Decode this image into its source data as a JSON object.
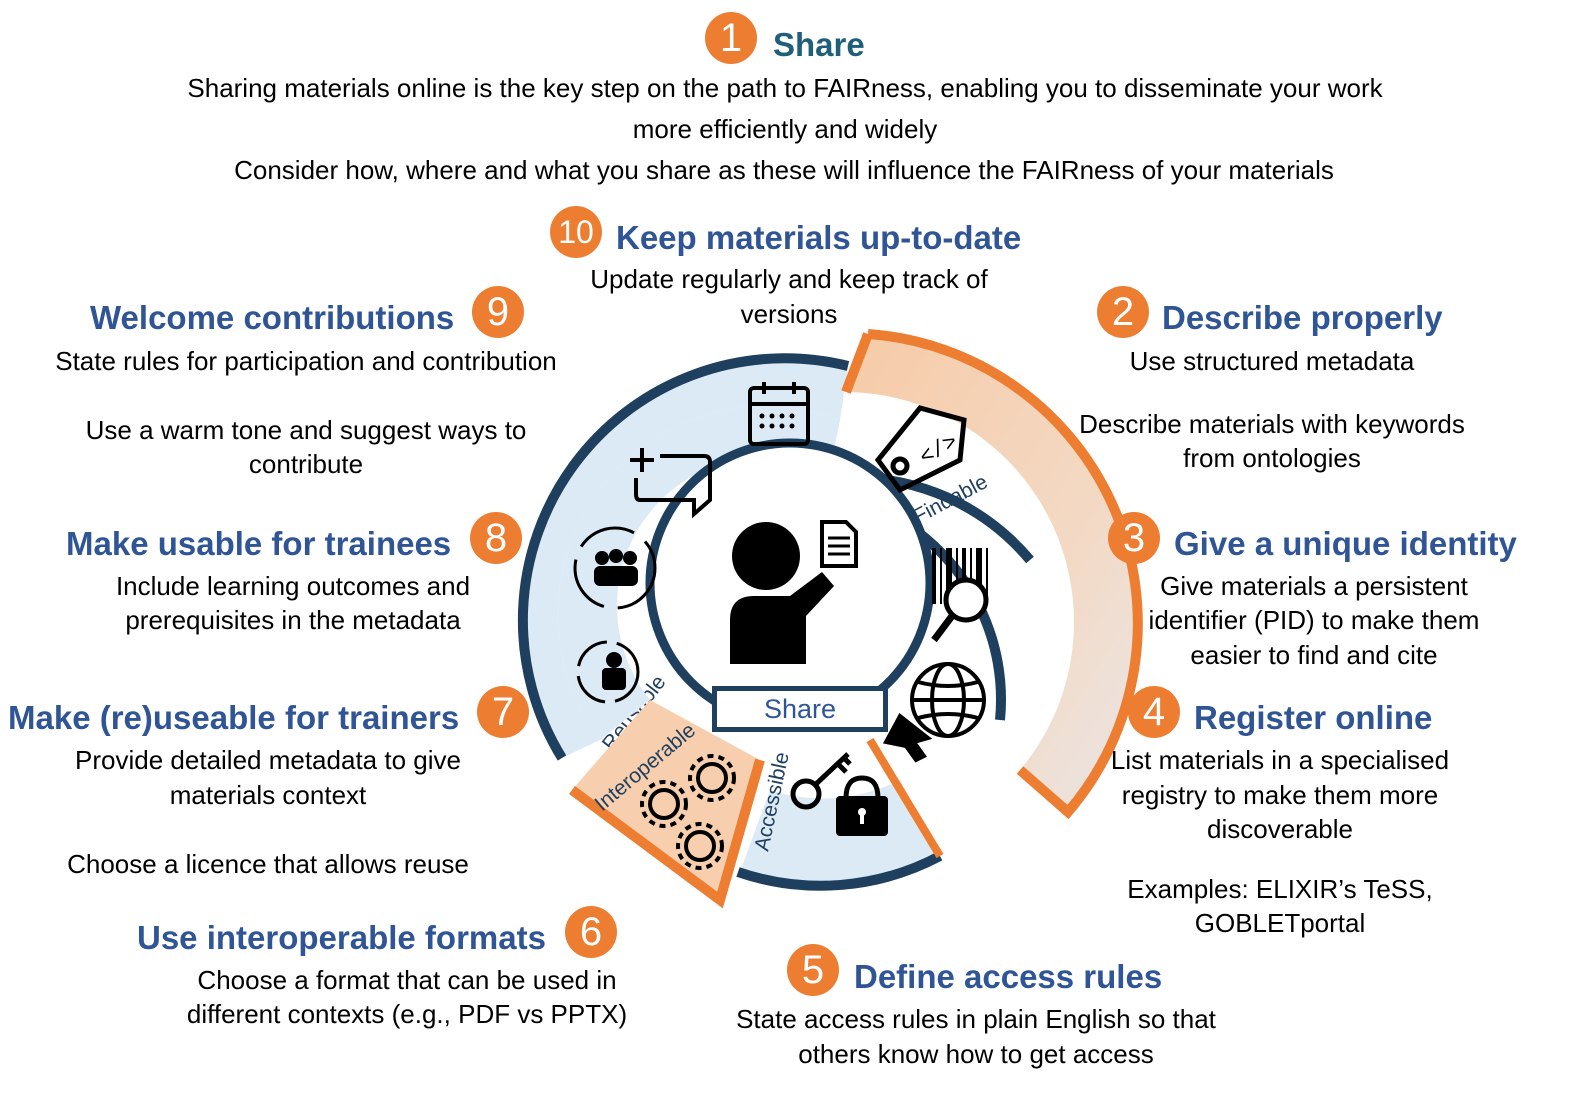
{
  "colors": {
    "heading": "#2f5597",
    "share_heading": "#1f5f7a",
    "badge": "#ed7d31",
    "ring_dark": "#1f3f5f",
    "reusable_fill": "#dceaf6",
    "findable_fill": "#f7cfae"
  },
  "steps": [
    {
      "num": "1",
      "title": "Share",
      "lines": [
        "Sharing materials online is the key step on the path to FAIRness, enabling you to disseminate your work",
        "more efficiently and widely",
        "Consider how, where and what you share as these will influence the FAIRness of your materials"
      ]
    },
    {
      "num": "2",
      "title": "Describe properly",
      "lines": [
        "Use structured metadata",
        "Describe materials with keywords",
        "from ontologies"
      ]
    },
    {
      "num": "3",
      "title": "Give a unique identity",
      "lines": [
        "Give materials a persistent",
        "identifier (PID) to make them",
        "easier to find and cite"
      ]
    },
    {
      "num": "4",
      "title": "Register online",
      "lines": [
        "List materials in a specialised",
        "registry to make them more",
        "discoverable",
        "Examples: ELIXIR’s TeSS,",
        "GOBLETportal"
      ]
    },
    {
      "num": "5",
      "title": "Define access rules",
      "lines": [
        "State access rules in plain English so that",
        "others know how to get access"
      ]
    },
    {
      "num": "6",
      "title": "Use interoperable formats",
      "lines": [
        "Choose a format that can be used in",
        "different contexts (e.g., PDF vs PPTX)"
      ]
    },
    {
      "num": "7",
      "title": "Make (re)useable for trainers",
      "lines": [
        "Provide detailed metadata to give",
        "materials context",
        "Choose a licence that allows reuse"
      ]
    },
    {
      "num": "8",
      "title": "Make usable for trainees",
      "lines": [
        "Include learning outcomes and",
        "prerequisites in the metadata"
      ]
    },
    {
      "num": "9",
      "title": "Welcome contributions",
      "lines": [
        "State rules for participation and contribution",
        "Use a warm tone and suggest ways to",
        "contribute"
      ]
    },
    {
      "num": "10",
      "title": "Keep materials up-to-date",
      "lines": [
        "Update regularly and keep track of",
        "versions"
      ]
    }
  ],
  "wheel": {
    "center_label": "Share",
    "segments": [
      "Findable",
      "Accessible",
      "Interoperable",
      "Reusable"
    ],
    "icons": [
      "calendar-icon",
      "add-comment-icon",
      "team-cycle-icon",
      "person-cycle-icon",
      "code-tag-icon",
      "barcode-search-icon",
      "globe-cursor-icon",
      "key-lock-icon",
      "gears-icon",
      "presenter-document-icon"
    ]
  }
}
